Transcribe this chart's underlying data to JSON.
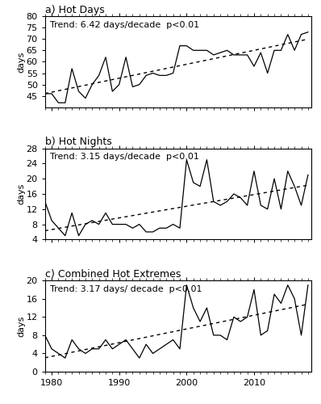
{
  "years": [
    1979,
    1980,
    1981,
    1982,
    1983,
    1984,
    1985,
    1986,
    1987,
    1988,
    1989,
    1990,
    1991,
    1992,
    1993,
    1994,
    1995,
    1996,
    1997,
    1998,
    1999,
    2000,
    2001,
    2002,
    2003,
    2004,
    2005,
    2006,
    2007,
    2008,
    2009,
    2010,
    2011,
    2012,
    2013,
    2014,
    2015,
    2016,
    2017,
    2018
  ],
  "hot_days": [
    46,
    46,
    42,
    42,
    57,
    47,
    44,
    50,
    54,
    62,
    47,
    50,
    62,
    49,
    50,
    54,
    55,
    54,
    54,
    55,
    67,
    67,
    65,
    65,
    65,
    63,
    64,
    65,
    63,
    63,
    63,
    58,
    64,
    55,
    65,
    65,
    72,
    65,
    72,
    73
  ],
  "hot_nights": [
    14,
    9,
    7,
    5,
    11,
    5,
    8,
    9,
    8,
    11,
    8,
    8,
    8,
    7,
    8,
    6,
    6,
    7,
    7,
    8,
    7,
    25,
    19,
    18,
    25,
    14,
    13,
    14,
    16,
    15,
    13,
    22,
    13,
    12,
    20,
    12,
    22,
    18,
    13,
    21
  ],
  "combined": [
    8,
    5,
    4,
    3,
    7,
    5,
    4,
    5,
    5,
    7,
    5,
    6,
    7,
    5,
    3,
    6,
    4,
    5,
    6,
    7,
    5,
    19,
    14,
    11,
    14,
    8,
    8,
    7,
    12,
    11,
    12,
    18,
    8,
    9,
    17,
    15,
    19,
    16,
    8,
    19
  ],
  "hot_days_trend_label": "Trend: 6.42 days/decade  p<0.01",
  "hot_nights_trend_label": "Trend: 3.15 days/decade  p<0.01",
  "combined_trend_label": "Trend: 3.17 days/ decade  p<0.01",
  "panel_titles": [
    "a) Hot Days",
    "b) Hot Nights",
    "c) Combined Hot Extremes"
  ],
  "ylabel": "days",
  "hot_days_ylim": [
    40,
    80
  ],
  "hot_days_yticks": [
    45,
    50,
    55,
    60,
    65,
    70,
    75,
    80
  ],
  "hot_nights_ylim": [
    4,
    28
  ],
  "hot_nights_yticks": [
    4,
    8,
    12,
    16,
    20,
    24,
    28
  ],
  "combined_ylim": [
    0,
    20
  ],
  "combined_yticks": [
    0,
    4,
    8,
    12,
    16,
    20
  ],
  "xlim": [
    1979,
    2018.5
  ],
  "xticks": [
    1980,
    1990,
    2000,
    2010
  ],
  "line_color": "black",
  "trend_color": "black",
  "background_color": "white",
  "title_fontsize": 9,
  "label_fontsize": 8,
  "tick_fontsize": 8,
  "trend_fontsize": 8
}
